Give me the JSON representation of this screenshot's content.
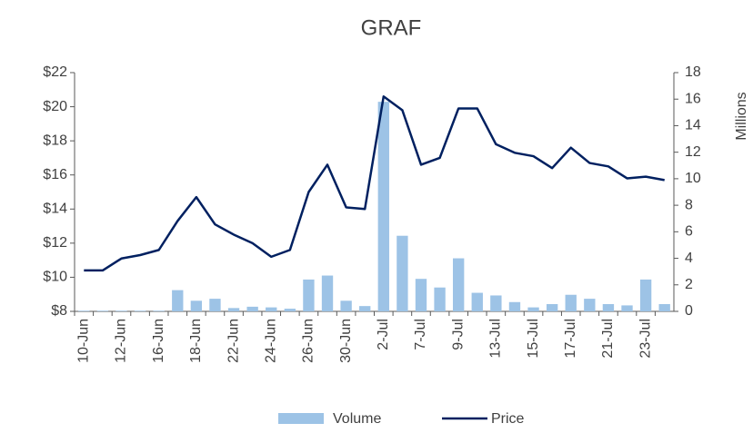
{
  "chart_data": {
    "type": "bar-line",
    "title": "GRAF",
    "categories": [
      "10-Jun",
      null,
      "12-Jun",
      null,
      "16-Jun",
      null,
      "18-Jun",
      null,
      "22-Jun",
      null,
      "24-Jun",
      null,
      "26-Jun",
      null,
      "30-Jun",
      null,
      "2-Jul",
      null,
      "7-Jul",
      null,
      "9-Jul",
      null,
      "13-Jul",
      null,
      "15-Jul",
      null,
      "17-Jul",
      null,
      "21-Jul",
      null,
      "23-Jul",
      null
    ],
    "series": [
      {
        "name": "Volume",
        "kind": "bar",
        "axis": "y2",
        "color": "#9dc3e6",
        "values": [
          0.05,
          0.05,
          0.05,
          0.05,
          0.05,
          1.6,
          0.8,
          0.95,
          0.25,
          0.35,
          0.3,
          0.2,
          2.4,
          2.7,
          0.8,
          0.4,
          15.8,
          5.7,
          2.45,
          1.8,
          4.0,
          1.4,
          1.2,
          0.7,
          0.3,
          0.55,
          1.25,
          0.95,
          0.55,
          0.45,
          2.4,
          0.55
        ]
      },
      {
        "name": "Price",
        "kind": "line",
        "color": "#002060",
        "values": [
          10.4,
          10.4,
          11.1,
          11.3,
          11.6,
          13.3,
          14.7,
          13.1,
          12.5,
          12.0,
          11.2,
          11.6,
          15.0,
          16.6,
          14.1,
          14.0,
          20.6,
          19.8,
          16.6,
          17.0,
          19.9,
          19.9,
          17.8,
          17.3,
          17.1,
          16.4,
          17.6,
          16.7,
          16.5,
          15.8,
          15.9,
          15.7
        ]
      }
    ],
    "ylim": [
      8,
      22
    ],
    "yticks": [
      {
        "value": 8,
        "label": "$8"
      },
      {
        "value": 10,
        "label": "$10"
      },
      {
        "value": 12,
        "label": "$12"
      },
      {
        "value": 14,
        "label": "$14"
      },
      {
        "value": 16,
        "label": "$16"
      },
      {
        "value": 18,
        "label": "$18"
      },
      {
        "value": 20,
        "label": "$20"
      },
      {
        "value": 22,
        "label": "$22"
      }
    ],
    "y2lim": [
      0,
      18
    ],
    "y2ticks": [
      0,
      2,
      4,
      6,
      8,
      10,
      12,
      14,
      16,
      18
    ],
    "y2label": "Millions",
    "legend": "bottom"
  }
}
